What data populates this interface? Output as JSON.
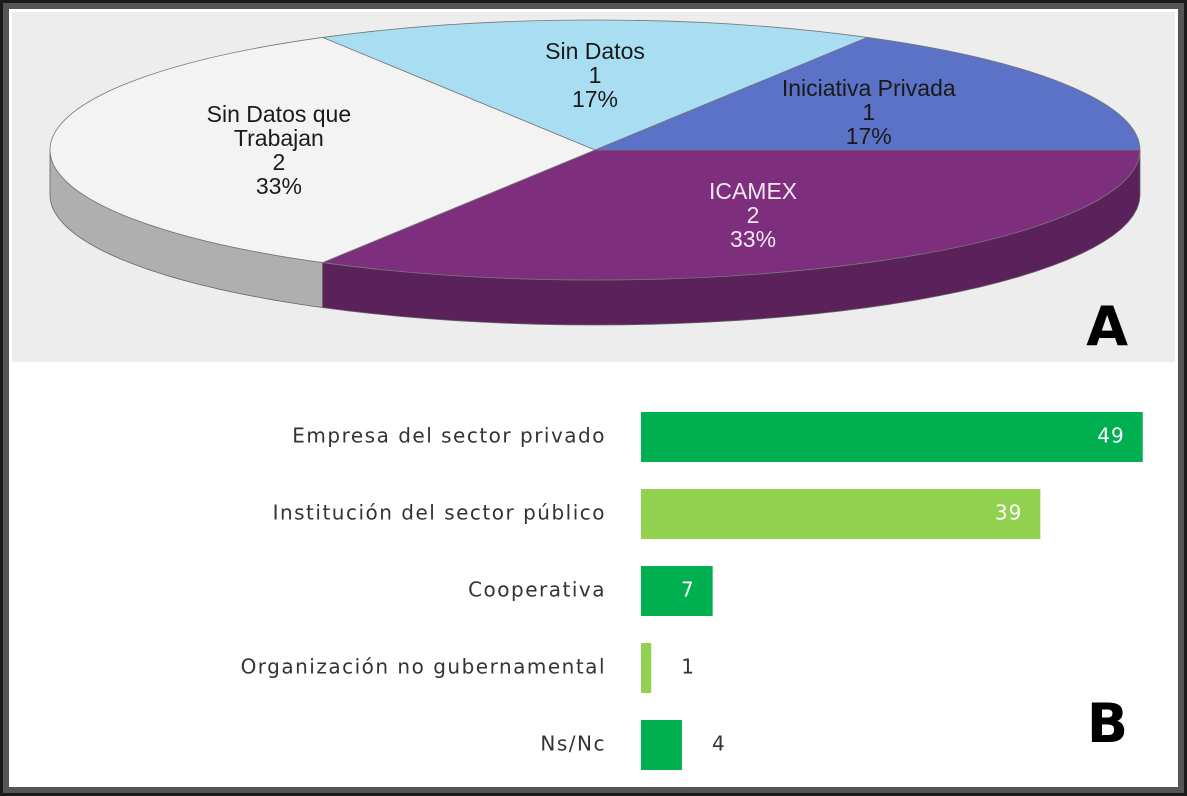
{
  "chart_data": [
    {
      "type": "pie3d",
      "panel_label": "A",
      "categories": [
        "Sin Datos",
        "Iniciativa Privada",
        "ICAMEX",
        "Sin Datos que Trabajan"
      ],
      "values": [
        1,
        1,
        2,
        2
      ],
      "percent_labels": [
        "17%",
        "17%",
        "33%",
        "33%"
      ],
      "colors": [
        "#a9ddf2",
        "#5b72c6",
        "#7d2e7d",
        "#f3f3f3"
      ]
    },
    {
      "type": "hbar",
      "panel_label": "B",
      "categories": [
        "Empresa del sector privado",
        "Institución del sector público",
        "Cooperativa",
        "Organización no gubernamental",
        "Ns/Nc"
      ],
      "values": [
        49,
        39,
        7,
        1,
        4
      ],
      "colors": [
        "#00b050",
        "#92d050",
        "#00b050",
        "#92d050",
        "#00b050"
      ],
      "xlim": [
        0,
        50
      ]
    }
  ]
}
